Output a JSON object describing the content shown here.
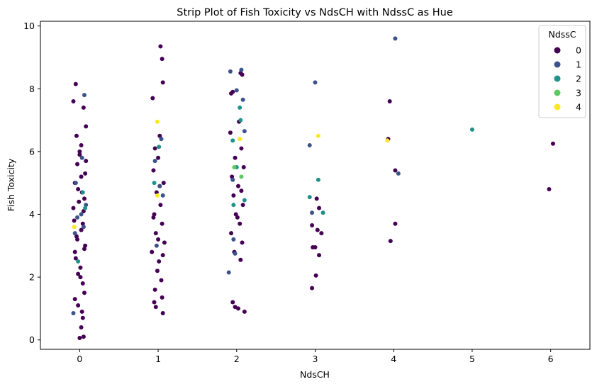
{
  "chart_data": {
    "type": "scatter",
    "title": "Strip Plot of Fish Toxicity vs NdsCH with NdssC as Hue",
    "xlabel": "NdsCH",
    "ylabel": "Fish Toxicity",
    "x_ticks": [
      "0",
      "1",
      "2",
      "3",
      "4",
      "5",
      "6"
    ],
    "y_ticks": [
      "0",
      "2",
      "4",
      "6",
      "8",
      "10"
    ],
    "xlim": [
      -0.5,
      6.5
    ],
    "ylim": [
      -0.3,
      10.15
    ],
    "grid": false,
    "legend": {
      "title": "NdssC",
      "placement": "top-right",
      "entries": [
        {
          "label": "0",
          "color": "#440154"
        },
        {
          "label": "1",
          "color": "#3b528b"
        },
        {
          "label": "2",
          "color": "#21918c"
        },
        {
          "label": "3",
          "color": "#5ec962"
        },
        {
          "label": "4",
          "color": "#fde725"
        }
      ]
    },
    "series": [
      {
        "name": "0",
        "color": "#440154",
        "points": [
          [
            0.0,
            0.06
          ],
          [
            0.05,
            0.1
          ],
          [
            0.02,
            0.4
          ],
          [
            0.04,
            0.7
          ],
          [
            -0.02,
            1.1
          ],
          [
            0.06,
            1.5
          ],
          [
            0.01,
            2.0
          ],
          [
            -0.08,
            7.6
          ],
          [
            -0.05,
            8.15
          ],
          [
            0.05,
            7.4
          ],
          [
            0.08,
            6.8
          ],
          [
            -0.04,
            6.5
          ],
          [
            0.02,
            6.2
          ],
          [
            0.0,
            5.9
          ],
          [
            -0.03,
            5.6
          ],
          [
            0.07,
            5.3
          ],
          [
            -0.06,
            5.0
          ],
          [
            0.03,
            4.7
          ],
          [
            -0.01,
            4.4
          ],
          [
            0.05,
            4.1
          ],
          [
            -0.07,
            3.8
          ],
          [
            0.02,
            3.5
          ],
          [
            -0.03,
            3.2
          ],
          [
            0.06,
            2.9
          ],
          [
            -0.05,
            2.6
          ],
          [
            0.01,
            2.3
          ],
          [
            0.04,
            1.8
          ],
          [
            -0.06,
            1.3
          ],
          [
            0.03,
            0.9
          ],
          [
            -0.02,
            2.1
          ],
          [
            0.07,
            3.0
          ],
          [
            -0.08,
            4.2
          ],
          [
            0.08,
            5.7
          ],
          [
            0.0,
            6.0
          ],
          [
            -0.04,
            3.3
          ],
          [
            0.04,
            3.7
          ],
          [
            -0.02,
            4.8
          ],
          [
            0.02,
            5.2
          ],
          [
            -0.06,
            2.8
          ],
          [
            0.06,
            4.5
          ],
          [
            0.95,
            1.2
          ],
          [
            1.06,
            0.85
          ],
          [
            0.97,
            1.05
          ],
          [
            1.05,
            1.35
          ],
          [
            0.93,
            7.7
          ],
          [
            1.03,
            9.35
          ],
          [
            1.05,
            8.95
          ],
          [
            1.06,
            8.2
          ],
          [
            1.02,
            6.5
          ],
          [
            0.96,
            6.1
          ],
          [
            1.0,
            5.8
          ],
          [
            0.94,
            5.4
          ],
          [
            1.07,
            5.0
          ],
          [
            0.98,
            4.7
          ],
          [
            1.03,
            4.3
          ],
          [
            0.95,
            4.0
          ],
          [
            1.05,
            3.7
          ],
          [
            0.97,
            3.4
          ],
          [
            1.08,
            3.1
          ],
          [
            0.92,
            2.8
          ],
          [
            1.01,
            2.5
          ],
          [
            0.99,
            2.2
          ],
          [
            1.04,
            1.9
          ],
          [
            0.96,
            1.6
          ],
          [
            1.02,
            4.9
          ],
          [
            0.94,
            3.9
          ],
          [
            1.06,
            2.7
          ],
          [
            1.0,
            3.2
          ],
          [
            1.93,
            7.85
          ],
          [
            2.05,
            8.5
          ],
          [
            2.07,
            8.45
          ],
          [
            1.95,
            7.9
          ],
          [
            2.03,
            6.95
          ],
          [
            1.92,
            6.6
          ],
          [
            2.06,
            6.1
          ],
          [
            1.98,
            5.8
          ],
          [
            2.09,
            5.5
          ],
          [
            1.94,
            5.2
          ],
          [
            2.02,
            4.9
          ],
          [
            1.96,
            4.6
          ],
          [
            2.08,
            4.3
          ],
          [
            1.99,
            4.0
          ],
          [
            2.04,
            3.7
          ],
          [
            1.93,
            3.4
          ],
          [
            2.07,
            3.1
          ],
          [
            1.97,
            2.8
          ],
          [
            2.05,
            2.55
          ],
          [
            1.95,
            1.2
          ],
          [
            2.02,
            1.0
          ],
          [
            2.1,
            0.9
          ],
          [
            1.98,
            1.05
          ],
          [
            2.01,
            3.9
          ],
          [
            2.06,
            4.75
          ],
          [
            2.96,
            3.65
          ],
          [
            3.02,
            4.5
          ],
          [
            3.05,
            4.2
          ],
          [
            3.03,
            3.5
          ],
          [
            3.08,
            3.4
          ],
          [
            3.0,
            2.95
          ],
          [
            2.97,
            2.95
          ],
          [
            3.05,
            2.7
          ],
          [
            3.01,
            2.05
          ],
          [
            2.96,
            1.65
          ],
          [
            3.95,
            7.6
          ],
          [
            3.93,
            6.4
          ],
          [
            4.02,
            5.4
          ],
          [
            4.02,
            3.7
          ],
          [
            3.96,
            3.15
          ],
          [
            6.03,
            6.25
          ],
          [
            5.98,
            4.8
          ]
        ]
      },
      {
        "name": "1",
        "color": "#3b528b",
        "points": [
          [
            0.06,
            7.8
          ],
          [
            0.03,
            5.8
          ],
          [
            -0.05,
            5.0
          ],
          [
            0.08,
            4.3
          ],
          [
            -0.03,
            3.9
          ],
          [
            0.05,
            3.6
          ],
          [
            -0.08,
            0.85
          ],
          [
            0.02,
            4.0
          ],
          [
            -0.06,
            3.4
          ],
          [
            0.96,
            5.7
          ],
          [
            1.04,
            6.4
          ],
          [
            1.02,
            4.9
          ],
          [
            0.98,
            3.0
          ],
          [
            1.06,
            4.6
          ],
          [
            1.92,
            8.55
          ],
          [
            2.06,
            8.6
          ],
          [
            2.08,
            7.65
          ],
          [
            2.0,
            7.95
          ],
          [
            1.95,
            5.1
          ],
          [
            1.96,
            3.2
          ],
          [
            1.98,
            2.75
          ],
          [
            1.9,
            2.15
          ],
          [
            2.1,
            6.65
          ],
          [
            2.93,
            6.2
          ],
          [
            3.0,
            8.2
          ],
          [
            2.96,
            4.05
          ],
          [
            4.02,
            9.6
          ],
          [
            4.06,
            5.3
          ]
        ]
      },
      {
        "name": "2",
        "color": "#21918c",
        "points": [
          [
            -0.02,
            2.5
          ],
          [
            0.04,
            4.7
          ],
          [
            0.07,
            4.2
          ],
          [
            0.95,
            5.0
          ],
          [
            1.01,
            6.15
          ],
          [
            2.04,
            7.4
          ],
          [
            2.05,
            7.0
          ],
          [
            1.95,
            6.35
          ],
          [
            2.0,
            5.5
          ],
          [
            1.96,
            4.3
          ],
          [
            2.1,
            4.45
          ],
          [
            2.93,
            4.55
          ],
          [
            3.04,
            5.1
          ],
          [
            3.1,
            4.05
          ],
          [
            5.0,
            6.7
          ]
        ]
      },
      {
        "name": "3",
        "color": "#5ec962",
        "points": [
          [
            2.04,
            6.4
          ],
          [
            2.06,
            5.2
          ],
          [
            1.97,
            5.5
          ]
        ]
      },
      {
        "name": "4",
        "color": "#fde725",
        "points": [
          [
            -0.07,
            3.6
          ],
          [
            0.99,
            6.95
          ],
          [
            0.99,
            4.6
          ],
          [
            2.04,
            6.4
          ],
          [
            3.04,
            6.5
          ],
          [
            3.92,
            6.35
          ]
        ]
      }
    ]
  }
}
